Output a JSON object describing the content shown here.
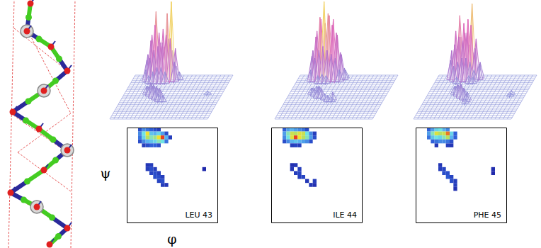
{
  "chart_data": [
    {
      "type": "heatmap",
      "title": "LEU 43",
      "xlabel": "φ",
      "ylabel": "ψ",
      "xlim": [
        -180,
        180
      ],
      "ylim": [
        -180,
        180
      ],
      "tick_labels": false,
      "zlim": [
        0,
        1
      ],
      "xbins": [
        -180,
        -165,
        -150,
        -135,
        -120,
        -105,
        -90,
        -75,
        -60,
        -45,
        -30,
        -15,
        0,
        15,
        30,
        45,
        60,
        75,
        90,
        105,
        120,
        135,
        150,
        165,
        180
      ],
      "ybins": [
        -180,
        -165,
        -150,
        -135,
        -120,
        -105,
        -90,
        -75,
        -60,
        -45,
        -30,
        -15,
        0,
        15,
        30,
        45,
        60,
        75,
        90,
        105,
        120,
        135,
        150,
        165,
        180
      ],
      "cells": [
        [
          -135,
          165,
          0.15
        ],
        [
          -120,
          165,
          0.3
        ],
        [
          -105,
          165,
          0.25
        ],
        [
          -90,
          165,
          0.2
        ],
        [
          -75,
          165,
          0.15
        ],
        [
          -60,
          165,
          0.1
        ],
        [
          -135,
          150,
          0.3
        ],
        [
          -120,
          150,
          0.55
        ],
        [
          -105,
          150,
          0.85
        ],
        [
          -90,
          150,
          0.45
        ],
        [
          -75,
          150,
          0.4
        ],
        [
          -60,
          150,
          0.5
        ],
        [
          -45,
          150,
          0.35
        ],
        [
          -30,
          150,
          0.15
        ],
        [
          -135,
          135,
          0.25
        ],
        [
          -120,
          135,
          0.5
        ],
        [
          -105,
          135,
          0.7
        ],
        [
          -90,
          135,
          0.6
        ],
        [
          -75,
          135,
          0.65
        ],
        [
          -60,
          135,
          0.85
        ],
        [
          -45,
          135,
          1.0
        ],
        [
          -30,
          135,
          0.4
        ],
        [
          -15,
          135,
          0.1
        ],
        [
          -135,
          120,
          0.15
        ],
        [
          -120,
          120,
          0.3
        ],
        [
          -105,
          120,
          0.4
        ],
        [
          -90,
          120,
          0.45
        ],
        [
          -75,
          120,
          0.5
        ],
        [
          -60,
          120,
          0.6
        ],
        [
          -45,
          120,
          0.55
        ],
        [
          -30,
          120,
          0.25
        ],
        [
          -120,
          105,
          0.1
        ],
        [
          -105,
          105,
          0.15
        ],
        [
          -90,
          105,
          0.2
        ],
        [
          -75,
          105,
          0.2
        ],
        [
          -60,
          105,
          0.15
        ],
        [
          -105,
          30,
          0.08
        ],
        [
          -90,
          30,
          0.1
        ],
        [
          -105,
          15,
          0.1
        ],
        [
          -90,
          15,
          0.15
        ],
        [
          -75,
          15,
          0.1
        ],
        [
          -90,
          0,
          0.12
        ],
        [
          -75,
          0,
          0.15
        ],
        [
          -60,
          0,
          0.1
        ],
        [
          -75,
          -15,
          0.15
        ],
        [
          -60,
          -15,
          0.15
        ],
        [
          -45,
          -15,
          0.1
        ],
        [
          -60,
          -30,
          0.12
        ],
        [
          -45,
          -30,
          0.15
        ],
        [
          -45,
          -45,
          0.1
        ],
        [
          -30,
          -45,
          0.08
        ],
        [
          120,
          15,
          0.04
        ]
      ]
    },
    {
      "type": "heatmap",
      "title": "ILE 44",
      "xlim": [
        -180,
        180
      ],
      "ylim": [
        -180,
        180
      ],
      "tick_labels": false,
      "zlim": [
        0,
        1
      ],
      "xbins": [
        -180,
        -165,
        -150,
        -135,
        -120,
        -105,
        -90,
        -75,
        -60,
        -45,
        -30,
        -15,
        0,
        15,
        30,
        45,
        60,
        75,
        90,
        105,
        120,
        135,
        150,
        165,
        180
      ],
      "ybins": [
        -180,
        -165,
        -150,
        -135,
        -120,
        -105,
        -90,
        -75,
        -60,
        -45,
        -30,
        -15,
        0,
        15,
        30,
        45,
        60,
        75,
        90,
        105,
        120,
        135,
        150,
        165,
        180
      ],
      "cells": [
        [
          -135,
          165,
          0.2
        ],
        [
          -120,
          165,
          0.35
        ],
        [
          -105,
          165,
          0.4
        ],
        [
          -90,
          165,
          0.35
        ],
        [
          -75,
          165,
          0.3
        ],
        [
          -60,
          165,
          0.25
        ],
        [
          -45,
          165,
          0.15
        ],
        [
          -135,
          150,
          0.35
        ],
        [
          -120,
          150,
          0.6
        ],
        [
          -105,
          150,
          0.75
        ],
        [
          -90,
          150,
          0.7
        ],
        [
          -75,
          150,
          0.8
        ],
        [
          -60,
          150,
          0.75
        ],
        [
          -45,
          150,
          0.55
        ],
        [
          -30,
          150,
          0.3
        ],
        [
          -15,
          150,
          0.1
        ],
        [
          -135,
          135,
          0.3
        ],
        [
          -120,
          135,
          0.55
        ],
        [
          -105,
          135,
          0.8
        ],
        [
          -90,
          135,
          1.0
        ],
        [
          -75,
          135,
          0.85
        ],
        [
          -60,
          135,
          0.7
        ],
        [
          -45,
          135,
          0.6
        ],
        [
          -30,
          135,
          0.35
        ],
        [
          -15,
          135,
          0.15
        ],
        [
          -135,
          120,
          0.15
        ],
        [
          -120,
          120,
          0.3
        ],
        [
          -105,
          120,
          0.4
        ],
        [
          -90,
          120,
          0.45
        ],
        [
          -75,
          120,
          0.4
        ],
        [
          -60,
          120,
          0.35
        ],
        [
          -45,
          120,
          0.3
        ],
        [
          -30,
          120,
          0.15
        ],
        [
          -105,
          105,
          0.1
        ],
        [
          -90,
          105,
          0.12
        ],
        [
          -75,
          105,
          0.1
        ],
        [
          -105,
          30,
          0.06
        ],
        [
          -90,
          30,
          0.08
        ],
        [
          -105,
          15,
          0.08
        ],
        [
          -75,
          15,
          0.1
        ],
        [
          -90,
          0,
          0.1
        ],
        [
          -75,
          0,
          0.12
        ],
        [
          -75,
          -15,
          0.1
        ],
        [
          -60,
          -15,
          0.12
        ],
        [
          -45,
          -30,
          0.08
        ],
        [
          -15,
          -30,
          0.1
        ],
        [
          -30,
          -45,
          0.08
        ],
        [
          -15,
          -45,
          0.06
        ]
      ]
    },
    {
      "type": "heatmap",
      "title": "PHE 45",
      "xlim": [
        -180,
        180
      ],
      "ylim": [
        -180,
        180
      ],
      "tick_labels": false,
      "zlim": [
        0,
        1
      ],
      "xbins": [
        -180,
        -165,
        -150,
        -135,
        -120,
        -105,
        -90,
        -75,
        -60,
        -45,
        -30,
        -15,
        0,
        15,
        30,
        45,
        60,
        75,
        90,
        105,
        120,
        135,
        150,
        165,
        180
      ],
      "ybins": [
        -180,
        -165,
        -150,
        -135,
        -120,
        -105,
        -90,
        -75,
        -60,
        -45,
        -30,
        -15,
        0,
        15,
        30,
        45,
        60,
        75,
        90,
        105,
        120,
        135,
        150,
        165,
        180
      ],
      "cells": [
        [
          -135,
          165,
          0.2
        ],
        [
          -120,
          165,
          0.35
        ],
        [
          -105,
          165,
          0.5
        ],
        [
          -90,
          165,
          0.55
        ],
        [
          -75,
          165,
          0.4
        ],
        [
          -60,
          165,
          0.3
        ],
        [
          -135,
          150,
          0.35
        ],
        [
          -120,
          150,
          0.6
        ],
        [
          -105,
          150,
          0.8
        ],
        [
          -90,
          150,
          0.7
        ],
        [
          -75,
          150,
          0.75
        ],
        [
          -60,
          150,
          0.95
        ],
        [
          -45,
          150,
          0.5
        ],
        [
          -30,
          150,
          0.2
        ],
        [
          -135,
          135,
          0.25
        ],
        [
          -120,
          135,
          0.45
        ],
        [
          -105,
          135,
          0.55
        ],
        [
          -90,
          135,
          0.5
        ],
        [
          -75,
          135,
          0.6
        ],
        [
          -60,
          135,
          0.7
        ],
        [
          -45,
          135,
          0.4
        ],
        [
          -30,
          135,
          0.2
        ],
        [
          -120,
          120,
          0.2
        ],
        [
          -105,
          120,
          0.25
        ],
        [
          -90,
          120,
          0.3
        ],
        [
          -75,
          120,
          0.3
        ],
        [
          -60,
          120,
          0.25
        ],
        [
          -45,
          120,
          0.15
        ],
        [
          -105,
          105,
          0.08
        ],
        [
          -60,
          105,
          0.1
        ],
        [
          -45,
          105,
          0.08
        ],
        [
          -90,
          30,
          0.08
        ],
        [
          -90,
          15,
          0.1
        ],
        [
          -75,
          15,
          0.12
        ],
        [
          -75,
          0,
          0.15
        ],
        [
          -60,
          0,
          0.15
        ],
        [
          -60,
          -15,
          0.18
        ],
        [
          -45,
          -15,
          0.12
        ],
        [
          -45,
          -30,
          0.15
        ],
        [
          -30,
          -30,
          0.1
        ],
        [
          -30,
          -45,
          0.1
        ],
        [
          -30,
          -60,
          0.06
        ],
        [
          120,
          15,
          0.05
        ],
        [
          120,
          0,
          0.04
        ]
      ]
    }
  ]
}
